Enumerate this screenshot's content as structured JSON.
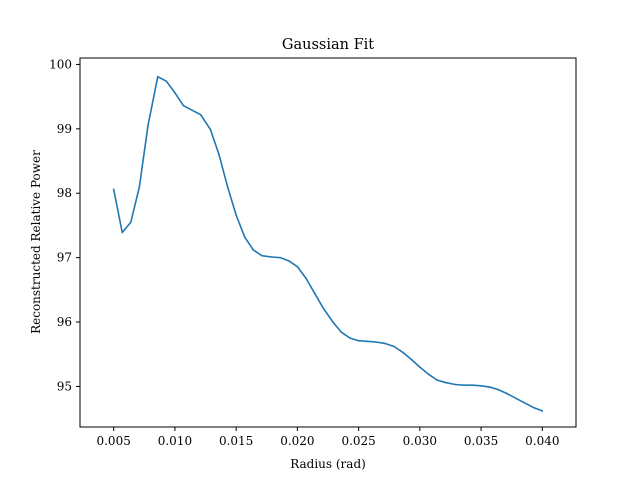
{
  "chart_data": {
    "type": "line",
    "title": "Gaussian Fit",
    "xlabel": "Radius (rad)",
    "ylabel": "Reconstructed Relative Power",
    "xlim": [
      0.00225,
      0.04275
    ],
    "ylim": [
      94.37,
      100.1
    ],
    "xticks": [
      0.005,
      0.01,
      0.015,
      0.02,
      0.025,
      0.03,
      0.035,
      0.04
    ],
    "xtick_labels": [
      "0.005",
      "0.010",
      "0.015",
      "0.020",
      "0.025",
      "0.030",
      "0.035",
      "0.040"
    ],
    "yticks": [
      95,
      96,
      97,
      98,
      99,
      100
    ],
    "ytick_labels": [
      "95",
      "96",
      "97",
      "98",
      "99",
      "100"
    ],
    "grid": false,
    "series_color": "#1f77b4",
    "series": [
      {
        "x": [
          0.005,
          0.0057,
          0.0064,
          0.0071,
          0.0078,
          0.0086,
          0.0093,
          0.01,
          0.0107,
          0.0114,
          0.0121,
          0.0129,
          0.0136,
          0.0143,
          0.015,
          0.0157,
          0.0164,
          0.0171,
          0.0179,
          0.0186,
          0.0193,
          0.02,
          0.0207,
          0.0214,
          0.0221,
          0.0229,
          0.0236,
          0.0243,
          0.025,
          0.0257,
          0.0264,
          0.0271,
          0.0279,
          0.0286,
          0.0293,
          0.03,
          0.0307,
          0.0314,
          0.0321,
          0.0329,
          0.0336,
          0.0343,
          0.035,
          0.0357,
          0.0364,
          0.0371,
          0.0379,
          0.0386,
          0.0393,
          0.04
        ],
        "y": [
          98.06,
          97.39,
          97.55,
          98.1,
          99.05,
          99.81,
          99.74,
          99.56,
          99.36,
          99.29,
          99.22,
          98.99,
          98.6,
          98.1,
          97.66,
          97.32,
          97.12,
          97.03,
          97.01,
          97.0,
          96.95,
          96.86,
          96.68,
          96.45,
          96.22,
          96.0,
          95.84,
          95.75,
          95.71,
          95.7,
          95.69,
          95.67,
          95.62,
          95.53,
          95.42,
          95.3,
          95.19,
          95.1,
          95.06,
          95.03,
          95.02,
          95.02,
          95.01,
          94.99,
          94.95,
          94.89,
          94.81,
          94.74,
          94.67,
          94.62
        ]
      }
    ]
  }
}
